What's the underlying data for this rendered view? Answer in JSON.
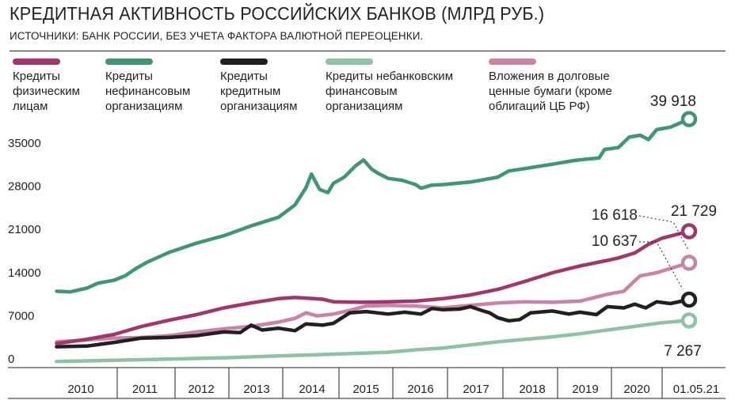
{
  "header": {
    "title": "КРЕДИТНАЯ АКТИВНОСТЬ РОССИЙСКИХ БАНКОВ (МЛРД РУБ.)",
    "subtitle": "ИСТОЧНИКИ: БАНК РОССИИ, БЕЗ УЧЕТА ФАКТОРА ВАЛЮТНОЙ ПЕРЕОЦЕНКИ."
  },
  "chart_data": {
    "type": "line",
    "x_labels": [
      "2010",
      "2011",
      "2012",
      "2013",
      "2014",
      "2015",
      "2016",
      "2017",
      "2018",
      "2019",
      "2020",
      "01.05.21"
    ],
    "yticks": [
      "0",
      "7000",
      "14000",
      "21000",
      "28000",
      "35000"
    ],
    "ylim": [
      0,
      40000
    ],
    "grid": false,
    "legend_position": "top",
    "series": [
      {
        "name": "Кредиты физическим лицам",
        "lines": [
          "Кредиты",
          "физическим",
          "лицам"
        ],
        "color": "#a3346e",
        "end_label": "21 729",
        "points": [
          [
            2009.95,
            3500
          ],
          [
            2010.5,
            4200
          ],
          [
            2011,
            5000
          ],
          [
            2011.5,
            6300
          ],
          [
            2012,
            7300
          ],
          [
            2012.5,
            8200
          ],
          [
            2013,
            9300
          ],
          [
            2013.5,
            10100
          ],
          [
            2014,
            10800
          ],
          [
            2014.3,
            11000
          ],
          [
            2014.8,
            10700
          ],
          [
            2015,
            10300
          ],
          [
            2015.5,
            10200
          ],
          [
            2016,
            10300
          ],
          [
            2016.5,
            10400
          ],
          [
            2017,
            10800
          ],
          [
            2017.5,
            11400
          ],
          [
            2018,
            12300
          ],
          [
            2018.5,
            13600
          ],
          [
            2019,
            15000
          ],
          [
            2019.5,
            16100
          ],
          [
            2020,
            17000
          ],
          [
            2020.2,
            17400
          ],
          [
            2020.5,
            18200
          ],
          [
            2020.75,
            19600
          ],
          [
            2021,
            20600
          ],
          [
            2021.33,
            21729
          ]
        ]
      },
      {
        "name": "Кредиты нефинансовым организациям",
        "lines": [
          "Кредиты",
          "нефинансовым",
          "организациям"
        ],
        "color": "#3e9672",
        "end_label": "39 918",
        "points": [
          [
            2009.95,
            12000
          ],
          [
            2010.2,
            11900
          ],
          [
            2010.5,
            12500
          ],
          [
            2010.7,
            13300
          ],
          [
            2011,
            13800
          ],
          [
            2011.2,
            14500
          ],
          [
            2011.4,
            15700
          ],
          [
            2011.6,
            16700
          ],
          [
            2011.8,
            17500
          ],
          [
            2012,
            18300
          ],
          [
            2012.5,
            19800
          ],
          [
            2013,
            21000
          ],
          [
            2013.5,
            22600
          ],
          [
            2014,
            24000
          ],
          [
            2014.3,
            26000
          ],
          [
            2014.5,
            28800
          ],
          [
            2014.6,
            31000
          ],
          [
            2014.75,
            28500
          ],
          [
            2014.9,
            28000
          ],
          [
            2015,
            29500
          ],
          [
            2015.2,
            30500
          ],
          [
            2015.4,
            32300
          ],
          [
            2015.55,
            33300
          ],
          [
            2015.7,
            31800
          ],
          [
            2015.8,
            31200
          ],
          [
            2016,
            30300
          ],
          [
            2016.25,
            30000
          ],
          [
            2016.5,
            29300
          ],
          [
            2016.6,
            28700
          ],
          [
            2016.8,
            29200
          ],
          [
            2017,
            29300
          ],
          [
            2017.5,
            29700
          ],
          [
            2018,
            30500
          ],
          [
            2018.2,
            31500
          ],
          [
            2018.5,
            31900
          ],
          [
            2019,
            32600
          ],
          [
            2019.4,
            33200
          ],
          [
            2019.7,
            33500
          ],
          [
            2019.85,
            33600
          ],
          [
            2019.95,
            35000
          ],
          [
            2020.2,
            35300
          ],
          [
            2020.4,
            37000
          ],
          [
            2020.6,
            37300
          ],
          [
            2020.75,
            36600
          ],
          [
            2020.9,
            38200
          ],
          [
            2021.1,
            38600
          ],
          [
            2021.33,
            39918
          ]
        ]
      },
      {
        "name": "Кредиты кредитным организациям",
        "lines": [
          "Кредиты",
          "кредитным",
          "организациям"
        ],
        "color": "#231f20",
        "end_label": "10 637",
        "points": [
          [
            2009.95,
            3000
          ],
          [
            2010.5,
            3100
          ],
          [
            2011,
            3700
          ],
          [
            2011.5,
            4400
          ],
          [
            2012,
            4500
          ],
          [
            2012.5,
            4800
          ],
          [
            2013,
            5400
          ],
          [
            2013.3,
            5300
          ],
          [
            2013.5,
            6500
          ],
          [
            2013.7,
            5700
          ],
          [
            2014,
            6000
          ],
          [
            2014.3,
            5600
          ],
          [
            2014.5,
            6700
          ],
          [
            2014.8,
            6500
          ],
          [
            2015,
            6800
          ],
          [
            2015.3,
            8500
          ],
          [
            2015.6,
            8700
          ],
          [
            2016,
            8300
          ],
          [
            2016.3,
            8600
          ],
          [
            2016.6,
            8300
          ],
          [
            2016.8,
            9200
          ],
          [
            2017,
            9000
          ],
          [
            2017.3,
            9100
          ],
          [
            2017.5,
            9500
          ],
          [
            2017.7,
            8900
          ],
          [
            2017.85,
            8500
          ],
          [
            2018,
            7700
          ],
          [
            2018.2,
            7200
          ],
          [
            2018.4,
            7400
          ],
          [
            2018.6,
            8500
          ],
          [
            2019,
            8800
          ],
          [
            2019.3,
            8300
          ],
          [
            2019.5,
            8600
          ],
          [
            2019.8,
            8200
          ],
          [
            2020,
            9500
          ],
          [
            2020.3,
            9300
          ],
          [
            2020.5,
            9900
          ],
          [
            2020.7,
            9300
          ],
          [
            2020.9,
            10300
          ],
          [
            2021.1,
            10000
          ],
          [
            2021.33,
            10637
          ]
        ]
      },
      {
        "name": "Кредиты небанковским финансовым организациям",
        "lines": [
          "Кредиты небанковским",
          "финансовым",
          "организациям"
        ],
        "color": "#8fc1a5",
        "end_label": "7 267",
        "points": [
          [
            2009.95,
            600
          ],
          [
            2011,
            800
          ],
          [
            2012,
            1000
          ],
          [
            2013,
            1200
          ],
          [
            2014,
            1500
          ],
          [
            2015,
            1800
          ],
          [
            2016,
            2100
          ],
          [
            2016.5,
            2500
          ],
          [
            2017,
            2800
          ],
          [
            2017.5,
            3300
          ],
          [
            2018,
            3800
          ],
          [
            2018.5,
            4200
          ],
          [
            2019,
            4600
          ],
          [
            2019.5,
            5100
          ],
          [
            2020,
            5700
          ],
          [
            2020.5,
            6300
          ],
          [
            2021,
            6900
          ],
          [
            2021.33,
            7267
          ]
        ]
      },
      {
        "name": "Вложения в долговые ценные бумаги (кроме облигаций ЦБ РФ)",
        "lines": [
          "Вложения в долговые",
          "ценные бумаги (кроме",
          "облигаций ЦБ РФ)"
        ],
        "color": "#c982a8",
        "end_label": "16 618",
        "points": [
          [
            2009.95,
            3800
          ],
          [
            2010.5,
            4100
          ],
          [
            2011,
            4400
          ],
          [
            2011.5,
            4500
          ],
          [
            2012,
            4800
          ],
          [
            2012.5,
            5400
          ],
          [
            2013,
            5900
          ],
          [
            2013.5,
            6300
          ],
          [
            2014,
            7000
          ],
          [
            2014.3,
            7600
          ],
          [
            2014.5,
            8500
          ],
          [
            2014.7,
            8000
          ],
          [
            2015,
            8300
          ],
          [
            2015.3,
            8900
          ],
          [
            2015.6,
            9600
          ],
          [
            2016,
            9700
          ],
          [
            2016.5,
            9600
          ],
          [
            2017,
            9300
          ],
          [
            2017.5,
            9700
          ],
          [
            2018,
            10100
          ],
          [
            2018.5,
            10300
          ],
          [
            2019,
            10200
          ],
          [
            2019.5,
            10400
          ],
          [
            2020,
            11500
          ],
          [
            2020.3,
            12000
          ],
          [
            2020.5,
            13700
          ],
          [
            2020.6,
            14500
          ],
          [
            2020.9,
            15000
          ],
          [
            2021.33,
            16618
          ]
        ]
      }
    ]
  }
}
